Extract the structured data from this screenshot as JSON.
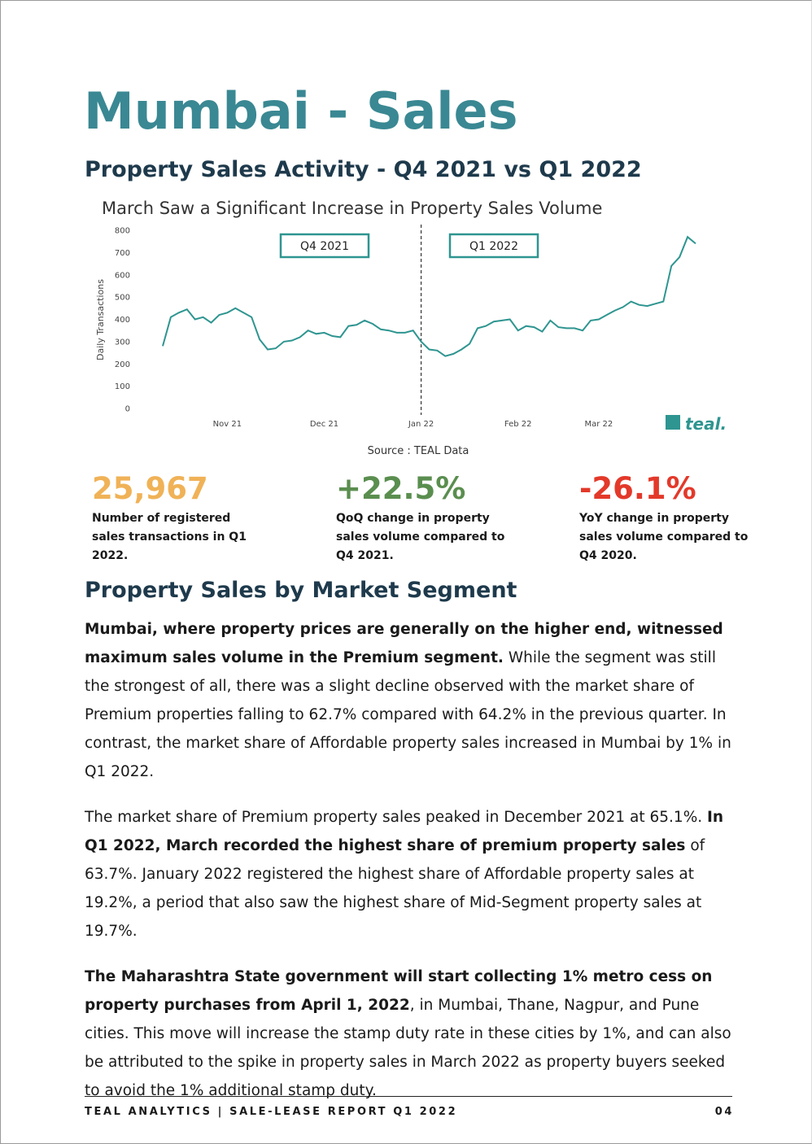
{
  "header": {
    "title": "Mumbai - Sales",
    "subtitle": "Property Sales Activity - Q4 2021 vs Q1 2022"
  },
  "chart_data": {
    "type": "line",
    "title": "March Saw a Significant Increase in Property Sales Volume",
    "y_label": "Daily Transactions",
    "categories": [
      null,
      null,
      null,
      null,
      null,
      null,
      null,
      null,
      "Nov 21",
      null,
      null,
      null,
      null,
      null,
      null,
      null,
      null,
      null,
      null,
      null,
      "Dec 21",
      null,
      null,
      null,
      null,
      null,
      null,
      null,
      null,
      null,
      null,
      null,
      "Jan 22",
      null,
      null,
      null,
      null,
      null,
      null,
      null,
      null,
      null,
      null,
      null,
      "Feb 22",
      null,
      null,
      null,
      null,
      null,
      null,
      null,
      null,
      null,
      "Mar 22",
      null,
      null,
      null,
      null,
      null,
      null,
      null,
      null,
      null,
      null,
      null,
      null
    ],
    "values": [
      280,
      410,
      430,
      445,
      400,
      410,
      385,
      420,
      430,
      450,
      430,
      410,
      310,
      265,
      270,
      300,
      305,
      320,
      350,
      335,
      340,
      325,
      320,
      370,
      375,
      395,
      380,
      355,
      350,
      340,
      340,
      350,
      300,
      265,
      260,
      235,
      245,
      265,
      290,
      360,
      370,
      390,
      395,
      400,
      350,
      370,
      365,
      345,
      395,
      365,
      360,
      360,
      350,
      395,
      400,
      420,
      440,
      455,
      480,
      465,
      460,
      470,
      480,
      640,
      680,
      770,
      740
    ],
    "color": "#2e9590",
    "ylim": [
      0,
      800
    ],
    "yticks": [
      0,
      100,
      200,
      300,
      400,
      500,
      600,
      700,
      800
    ],
    "annotations": [
      "Q4 2021",
      "Q1 2022"
    ],
    "source": "Source : TEAL Data",
    "logo": "teal."
  },
  "stats": [
    {
      "value": "25,967",
      "color": "#f0b257",
      "text": "Number of registered sales transactions in  Q1 2022."
    },
    {
      "value": "+22.5%",
      "color": "#5a8e4f",
      "text": "QoQ change in property sales volume compared to Q4 2021."
    },
    {
      "value": "-26.1%",
      "color": "#e3392a",
      "text": "YoY change in property sales volume compared to Q4 2020."
    }
  ],
  "segment": {
    "heading": "Property Sales by Market Segment",
    "paragraphs": [
      [
        {
          "text": "Mumbai, where property prices are generally on the higher end, witnessed maximum sales volume in the Premium segment.",
          "bold": true
        },
        {
          "text": " While the segment was still the strongest of all, there was a slight decline observed with the market share of Premium properties falling to 62.7% compared with 64.2% in the previous quarter. In contrast, the market share of Affordable property sales increased in Mumbai by 1% in Q1 2022.",
          "bold": false
        }
      ],
      [
        {
          "text": "The market share of Premium property sales peaked in December 2021 at 65.1%. ",
          "bold": false
        },
        {
          "text": "In Q1 2022, March recorded the highest share of premium property sales",
          "bold": true
        },
        {
          "text": " of 63.7%. January 2022 registered the highest share of Affordable property sales at 19.2%, a period that also saw the highest share of Mid-Segment property sales at 19.7%.",
          "bold": false
        }
      ],
      [
        {
          "text": "The Maharashtra State government will start collecting 1% metro cess on property purchases from April 1, 2022",
          "bold": true
        },
        {
          "text": ", in Mumbai, Thane, Nagpur, and Pune cities. This move will increase the stamp duty rate in these cities by 1%, and can also be attributed to the spike in property sales in March 2022 as property buyers seeked to avoid the 1% additional stamp duty.",
          "bold": false
        }
      ]
    ]
  },
  "footer": {
    "left": "TEAL ANALYTICS | SALE-LEASE REPORT Q1 2022",
    "page": "04"
  }
}
